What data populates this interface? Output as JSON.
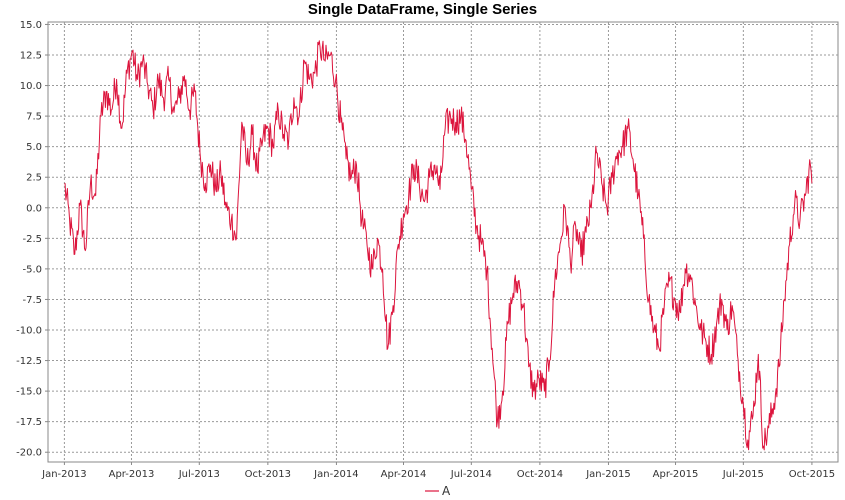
{
  "chart_data": {
    "type": "line",
    "title": "Single DataFrame, Single Series",
    "xlabel": "",
    "ylabel": "",
    "xlim": [
      "2012-12-10",
      "2015-11-05"
    ],
    "ylim": [
      -20.8,
      15.2
    ],
    "grid": true,
    "legend_placement": "bottom-center",
    "x_ticks": [
      "Jan-2013",
      "Apr-2013",
      "Jul-2013",
      "Oct-2013",
      "Jan-2014",
      "Apr-2014",
      "Jul-2014",
      "Oct-2014",
      "Jan-2015",
      "Apr-2015",
      "Jul-2015",
      "Oct-2015"
    ],
    "x_tick_dates": [
      "2013-01-01",
      "2013-04-01",
      "2013-07-01",
      "2013-10-01",
      "2014-01-01",
      "2014-04-01",
      "2014-07-01",
      "2014-10-01",
      "2015-01-01",
      "2015-04-01",
      "2015-07-01",
      "2015-10-01"
    ],
    "y_ticks": [
      15.0,
      12.5,
      10.0,
      7.5,
      5.0,
      2.5,
      0.0,
      -2.5,
      -5.0,
      -7.5,
      -10.0,
      -12.5,
      -15.0,
      -17.5,
      -20.0
    ],
    "y_tick_labels": [
      "15.0",
      "12.5",
      "10.0",
      "7.5",
      "5.0",
      "2.5",
      "0.0",
      "-2.5",
      "-5.0",
      "-7.5",
      "-10.0",
      "-12.5",
      "-15.0",
      "-17.5",
      "-20.0"
    ],
    "series": [
      {
        "name": "A",
        "color": "#dc143c",
        "frequency": "daily",
        "x": [
          "2013-01-01",
          "2013-01-08",
          "2013-01-15",
          "2013-01-22",
          "2013-01-29",
          "2013-02-05",
          "2013-02-12",
          "2013-02-19",
          "2013-02-26",
          "2013-03-05",
          "2013-03-12",
          "2013-03-19",
          "2013-03-26",
          "2013-04-02",
          "2013-04-09",
          "2013-04-16",
          "2013-04-23",
          "2013-04-30",
          "2013-05-07",
          "2013-05-14",
          "2013-05-21",
          "2013-05-28",
          "2013-06-04",
          "2013-06-11",
          "2013-06-18",
          "2013-06-25",
          "2013-07-02",
          "2013-07-09",
          "2013-07-16",
          "2013-07-23",
          "2013-07-30",
          "2013-08-06",
          "2013-08-13",
          "2013-08-20",
          "2013-08-27",
          "2013-09-03",
          "2013-09-10",
          "2013-09-17",
          "2013-09-24",
          "2013-10-01",
          "2013-10-08",
          "2013-10-15",
          "2013-10-22",
          "2013-10-29",
          "2013-11-05",
          "2013-11-12",
          "2013-11-19",
          "2013-11-26",
          "2013-12-03",
          "2013-12-10",
          "2013-12-17",
          "2013-12-24",
          "2013-12-31",
          "2014-01-07",
          "2014-01-14",
          "2014-01-21",
          "2014-01-28",
          "2014-02-04",
          "2014-02-11",
          "2014-02-18",
          "2014-02-25",
          "2014-03-04",
          "2014-03-11",
          "2014-03-18",
          "2014-03-25",
          "2014-04-01",
          "2014-04-08",
          "2014-04-15",
          "2014-04-22",
          "2014-04-29",
          "2014-05-06",
          "2014-05-13",
          "2014-05-20",
          "2014-05-27",
          "2014-06-03",
          "2014-06-10",
          "2014-06-17",
          "2014-06-24",
          "2014-07-01",
          "2014-07-08",
          "2014-07-15",
          "2014-07-22",
          "2014-07-29",
          "2014-08-05",
          "2014-08-12",
          "2014-08-19",
          "2014-08-26",
          "2014-09-02",
          "2014-09-09",
          "2014-09-16",
          "2014-09-23",
          "2014-09-30",
          "2014-10-07",
          "2014-10-14",
          "2014-10-21",
          "2014-10-28",
          "2014-11-04",
          "2014-11-11",
          "2014-11-18",
          "2014-11-25",
          "2014-12-02",
          "2014-12-09",
          "2014-12-16",
          "2014-12-23",
          "2014-12-30",
          "2015-01-06",
          "2015-01-13",
          "2015-01-20",
          "2015-01-27",
          "2015-02-03",
          "2015-02-10",
          "2015-02-17",
          "2015-02-24",
          "2015-03-03",
          "2015-03-10",
          "2015-03-17",
          "2015-03-24",
          "2015-03-31",
          "2015-04-07",
          "2015-04-14",
          "2015-04-21",
          "2015-04-28",
          "2015-05-05",
          "2015-05-12",
          "2015-05-19",
          "2015-05-26",
          "2015-06-02",
          "2015-06-09",
          "2015-06-16",
          "2015-06-23",
          "2015-06-30",
          "2015-07-07",
          "2015-07-14",
          "2015-07-21",
          "2015-07-28",
          "2015-08-04",
          "2015-08-11",
          "2015-08-18",
          "2015-08-25",
          "2015-09-01",
          "2015-09-08",
          "2015-09-15",
          "2015-09-22",
          "2015-09-29",
          "2015-10-01"
        ],
        "y": [
          2.0,
          -1.0,
          -3.8,
          0.2,
          -3.5,
          2.0,
          1.0,
          7.5,
          9.5,
          8.0,
          10.5,
          6.5,
          11.0,
          12.8,
          10.5,
          12.0,
          10.0,
          8.0,
          10.5,
          9.0,
          10.5,
          7.8,
          9.0,
          10.8,
          8.0,
          9.5,
          4.5,
          2.0,
          3.5,
          1.5,
          2.8,
          0.0,
          -1.0,
          -2.5,
          7.0,
          3.5,
          6.0,
          3.0,
          5.5,
          6.5,
          5.0,
          8.0,
          6.0,
          5.5,
          9.0,
          7.5,
          12.0,
          10.5,
          11.0,
          13.2,
          12.0,
          12.5,
          10.5,
          7.0,
          4.0,
          2.5,
          3.5,
          -1.0,
          -3.0,
          -5.0,
          -2.5,
          -5.0,
          -11.5,
          -8.0,
          -3.0,
          -0.5,
          1.0,
          3.5,
          2.0,
          0.5,
          2.5,
          3.5,
          1.5,
          6.5,
          7.5,
          7.0,
          7.5,
          5.5,
          1.5,
          -1.5,
          -3.0,
          -5.0,
          -11.5,
          -17.5,
          -15.0,
          -9.5,
          -7.0,
          -6.0,
          -8.0,
          -13.0,
          -15.0,
          -14.0,
          -15.0,
          -12.5,
          -6.0,
          -3.0,
          0.0,
          -4.5,
          -1.5,
          -4.0,
          -2.0,
          0.0,
          4.5,
          2.0,
          0.0,
          2.5,
          4.5,
          5.0,
          6.5,
          4.0,
          1.0,
          -2.5,
          -7.5,
          -10.0,
          -11.5,
          -8.0,
          -6.0,
          -7.5,
          -8.5,
          -5.0,
          -5.5,
          -8.0,
          -10.0,
          -11.0,
          -12.0,
          -9.5,
          -7.5,
          -10.0,
          -8.0,
          -12.0,
          -15.5,
          -19.0,
          -17.0,
          -12.0,
          -19.5,
          -18.0,
          -16.0,
          -13.0,
          -7.5,
          -3.0,
          0.5,
          -1.0,
          1.0,
          3.5,
          2.0
        ]
      }
    ]
  }
}
